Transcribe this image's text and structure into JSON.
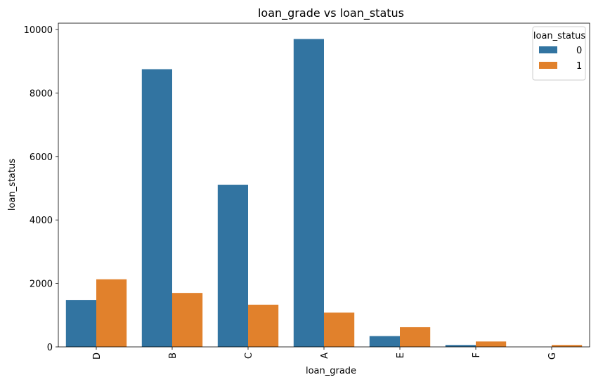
{
  "chart_data": {
    "type": "bar",
    "title": "loan_grade vs loan_status",
    "xlabel": "loan_grade",
    "ylabel": "loan_status",
    "categories": [
      "D",
      "B",
      "C",
      "A",
      "E",
      "F",
      "G"
    ],
    "series": [
      {
        "name": "0",
        "color": "#3274a1",
        "values": [
          1480,
          8750,
          5110,
          9700,
          340,
          60,
          0
        ]
      },
      {
        "name": "1",
        "color": "#e1812c",
        "values": [
          2130,
          1700,
          1330,
          1080,
          620,
          170,
          60
        ]
      }
    ],
    "ylim": [
      0,
      10200
    ],
    "yticks": [
      "0",
      "2000",
      "4000",
      "6000",
      "8000",
      "10000"
    ],
    "legend": {
      "title": "loan_status",
      "position": "top-right"
    },
    "grid": false
  }
}
